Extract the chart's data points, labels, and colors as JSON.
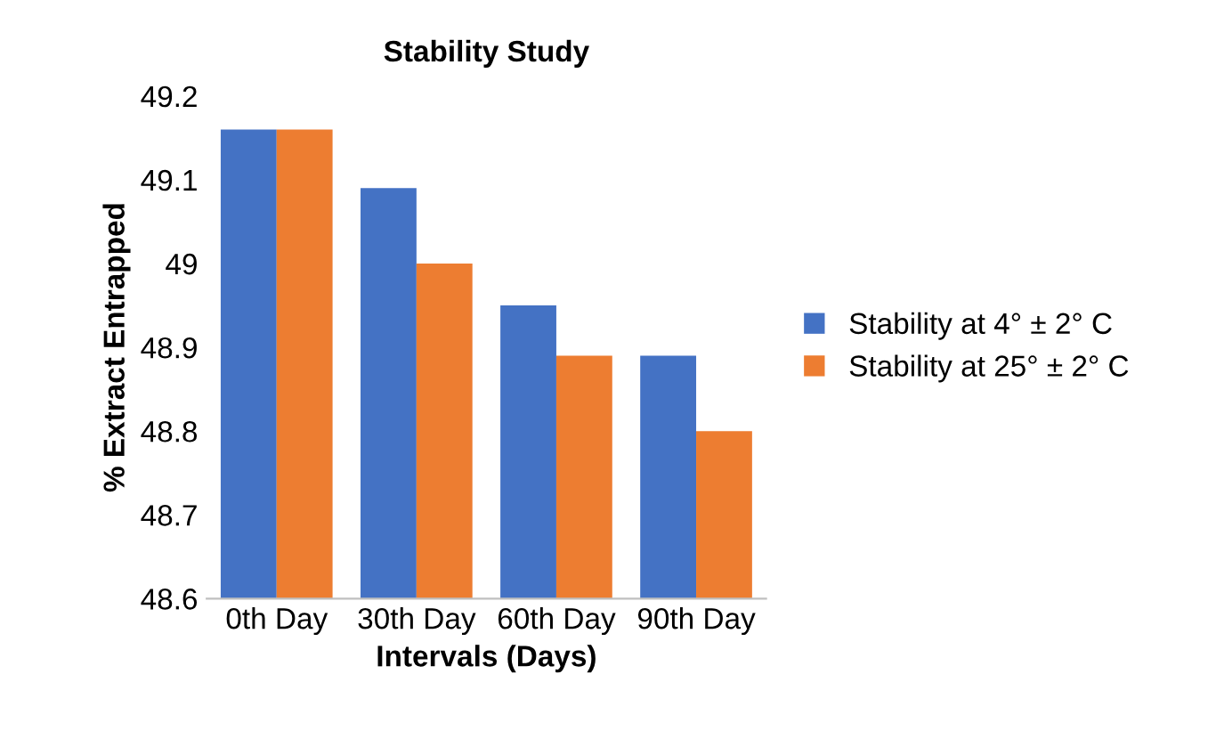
{
  "chart_data": {
    "type": "bar",
    "title": "Stability Study",
    "xlabel": "Intervals (Days)",
    "ylabel": "% Extract Entrapped",
    "categories": [
      "0th Day",
      "30th Day",
      "60th Day",
      "90th Day"
    ],
    "series": [
      {
        "name": "Stability at 4° ± 2° C",
        "color": "#4472c4",
        "values": [
          49.16,
          49.09,
          48.95,
          48.89
        ]
      },
      {
        "name": "Stability at 25° ± 2° C",
        "color": "#ed7d31",
        "values": [
          49.16,
          49.0,
          48.89,
          48.8
        ]
      }
    ],
    "ylim": [
      48.6,
      49.2
    ],
    "yticks": [
      48.6,
      48.7,
      48.8,
      48.9,
      49,
      49.1,
      49.2
    ],
    "legend": "right",
    "grid": false
  }
}
